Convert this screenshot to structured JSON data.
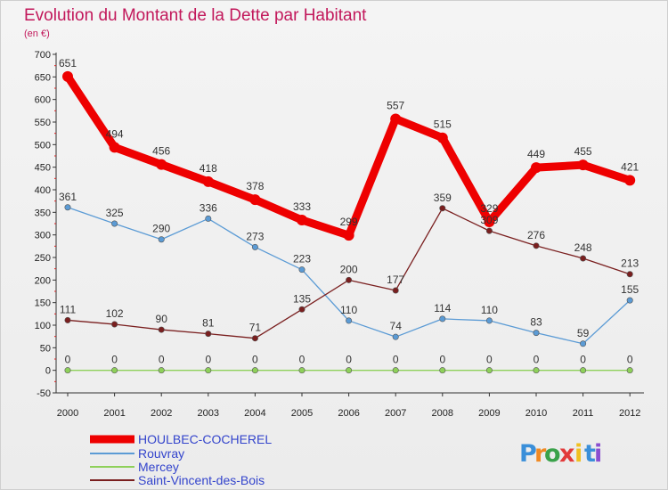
{
  "chart_data": {
    "type": "line",
    "title": "Evolution du Montant de la Dette par Habitant",
    "subtitle": "(en €)",
    "x": [
      "2000",
      "2001",
      "2002",
      "2003",
      "2004",
      "2005",
      "2006",
      "2007",
      "2008",
      "2009",
      "2010",
      "2011",
      "2012"
    ],
    "ylim": [
      -50,
      700
    ],
    "yticks": [
      "-50",
      "0",
      "50",
      "100",
      "150",
      "200",
      "250",
      "300",
      "350",
      "400",
      "450",
      "500",
      "550",
      "600",
      "650",
      "700"
    ],
    "grid": false,
    "legend": "bottom-left",
    "series": [
      {
        "name": "HOULBEC-COCHEREL",
        "color": "#ee0000",
        "values": [
          651,
          494,
          456,
          418,
          378,
          333,
          299,
          557,
          515,
          329,
          449,
          455,
          421
        ],
        "labels": [
          "651",
          "494",
          "456",
          "418",
          "378",
          "333",
          "299",
          "557",
          "515",
          "329",
          "449",
          "455",
          "421"
        ]
      },
      {
        "name": "Rouvray",
        "color": "#5b9bd5",
        "values": [
          361,
          325,
          290,
          336,
          273,
          223,
          110,
          74,
          114,
          110,
          83,
          59,
          155
        ],
        "labels": [
          "361",
          "325",
          "290",
          "336",
          "273",
          "223",
          "110",
          "74",
          "114",
          "110",
          "83",
          "59",
          "155"
        ]
      },
      {
        "name": "Mercey",
        "color": "#8ed05a",
        "values": [
          0,
          0,
          0,
          0,
          0,
          0,
          0,
          0,
          0,
          0,
          0,
          0,
          0
        ],
        "labels": [
          "0",
          "0",
          "0",
          "0",
          "0",
          "0",
          "0",
          "0",
          "0",
          "0",
          "0",
          "0",
          "0"
        ]
      },
      {
        "name": "Saint-Vincent-des-Bois",
        "color": "#7a1f1f",
        "values": [
          111,
          102,
          90,
          81,
          71,
          135,
          200,
          177,
          359,
          309,
          276,
          248,
          213
        ],
        "labels": [
          "111",
          "102",
          "90",
          "81",
          "71",
          "135",
          "200",
          "177",
          "359",
          "309",
          "276",
          "248",
          "213"
        ]
      }
    ]
  },
  "brand": {
    "letters": [
      "P",
      "r",
      "o",
      "x",
      "i",
      "t",
      "i"
    ],
    "colors": [
      "#3a8fd9",
      "#f08a24",
      "#3aa24a",
      "#e23a3a",
      "#f0c020",
      "#3a8fd9",
      "#8a4fd0"
    ]
  }
}
